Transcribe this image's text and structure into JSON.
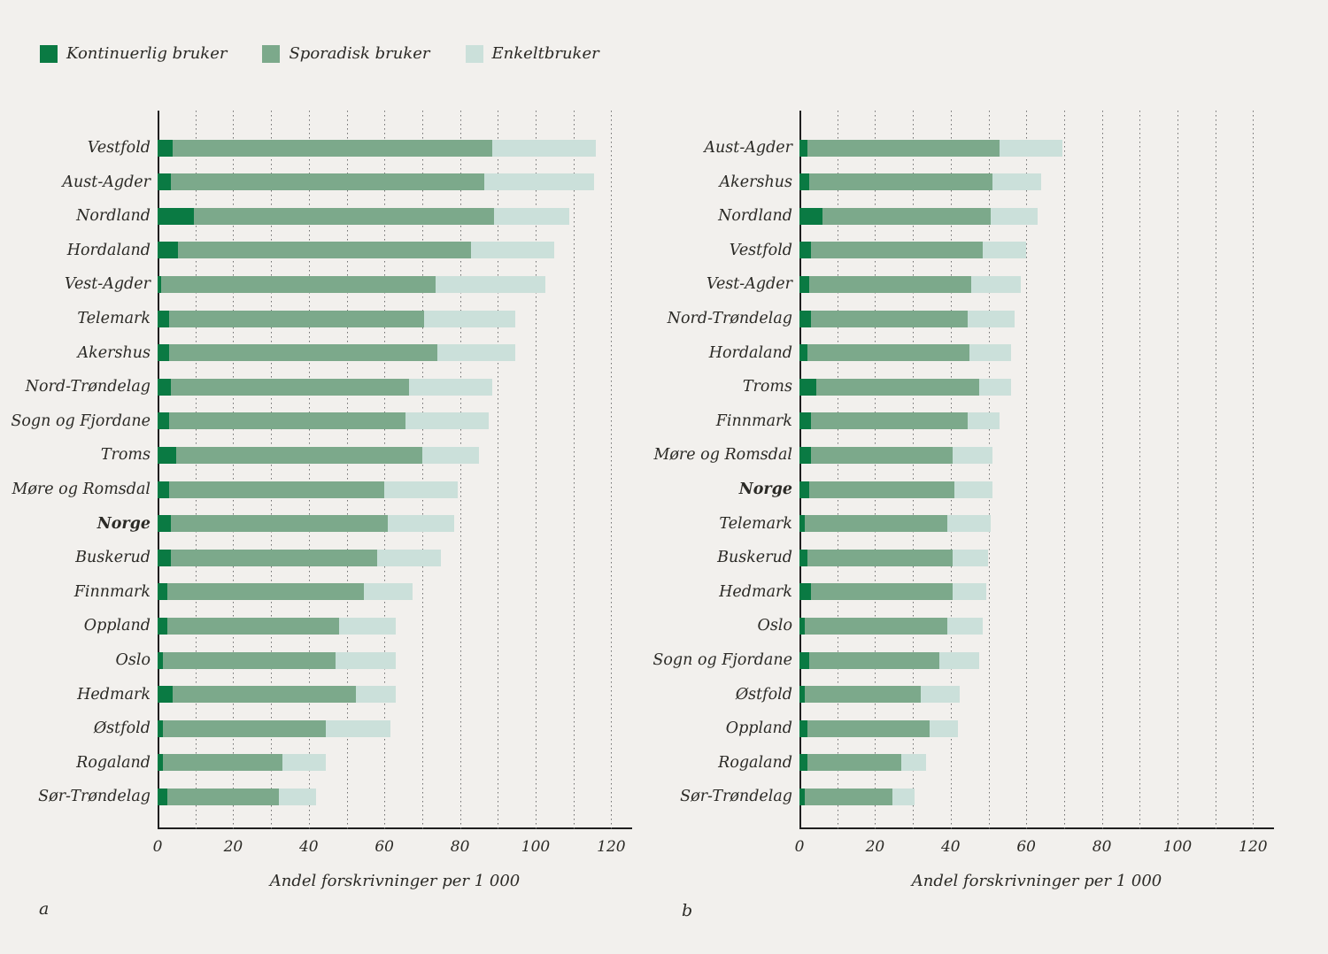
{
  "page": {
    "background": "#f2f0ed"
  },
  "legend": {
    "items": [
      {
        "label": "Kontinuerlig bruker",
        "color": "#0a7a43"
      },
      {
        "label": "Sporadisk bruker",
        "color": "#7ca98b"
      },
      {
        "label": "Enkeltbruker",
        "color": "#cbe0da"
      }
    ]
  },
  "panel_labels": {
    "a": "a",
    "b": "b"
  },
  "chart_data": [
    {
      "id": "a",
      "type": "bar",
      "orientation": "horizontal",
      "stacked": true,
      "xlabel": "Andel forskrivninger per 1 000",
      "xlim": [
        0,
        120
      ],
      "xticks": [
        0,
        20,
        40,
        60,
        80,
        100,
        120
      ],
      "grid_step": 10,
      "grid": "dotted",
      "bold_category": "Norge",
      "series_names": [
        "Kontinuerlig bruker",
        "Sporadisk bruker",
        "Enkeltbruker"
      ],
      "rows": [
        {
          "category": "Vestfold",
          "values": [
            4,
            84.5,
            27.5
          ]
        },
        {
          "category": "Aust-Agder",
          "values": [
            3.5,
            83,
            29
          ]
        },
        {
          "category": "Nordland",
          "values": [
            9.5,
            79.5,
            20
          ]
        },
        {
          "category": "Hordaland",
          "values": [
            5.5,
            77.5,
            22
          ]
        },
        {
          "category": "Vest-Agder",
          "values": [
            1,
            72.5,
            29
          ]
        },
        {
          "category": "Telemark",
          "values": [
            3,
            67.5,
            24
          ]
        },
        {
          "category": "Akershus",
          "values": [
            3,
            71,
            20.5
          ]
        },
        {
          "category": "Nord-Trøndelag",
          "values": [
            3.5,
            63,
            22
          ]
        },
        {
          "category": "Sogn og Fjordane",
          "values": [
            3,
            62.5,
            22
          ]
        },
        {
          "category": "Troms",
          "values": [
            5,
            65,
            15
          ]
        },
        {
          "category": "Møre og Romsdal",
          "values": [
            3,
            57,
            19.5
          ]
        },
        {
          "category": "Norge",
          "values": [
            3.5,
            57.5,
            17.5
          ]
        },
        {
          "category": "Buskerud",
          "values": [
            3.5,
            54.5,
            17
          ]
        },
        {
          "category": "Finnmark",
          "values": [
            2.5,
            52,
            13
          ]
        },
        {
          "category": "Oppland",
          "values": [
            2.5,
            45.5,
            15
          ]
        },
        {
          "category": "Oslo",
          "values": [
            1.5,
            45.5,
            16
          ]
        },
        {
          "category": "Hedmark",
          "values": [
            4,
            48.5,
            10.5
          ]
        },
        {
          "category": "Østfold",
          "values": [
            1.5,
            43,
            17
          ]
        },
        {
          "category": "Rogaland",
          "values": [
            1.5,
            31.5,
            11.5
          ]
        },
        {
          "category": "Sør-Trøndelag",
          "values": [
            2.5,
            29.5,
            10
          ]
        }
      ]
    },
    {
      "id": "b",
      "type": "bar",
      "orientation": "horizontal",
      "stacked": true,
      "xlabel": "Andel forskrivninger per 1 000",
      "xlim": [
        0,
        120
      ],
      "xticks": [
        0,
        20,
        40,
        60,
        80,
        100,
        120
      ],
      "grid_step": 10,
      "grid": "dotted",
      "bold_category": "Norge",
      "series_names": [
        "Kontinuerlig bruker",
        "Sporadisk bruker",
        "Enkeltbruker"
      ],
      "rows": [
        {
          "category": "Aust-Agder",
          "values": [
            2,
            51,
            16.5
          ]
        },
        {
          "category": "Akershus",
          "values": [
            2.5,
            48.5,
            13
          ]
        },
        {
          "category": "Nordland",
          "values": [
            6,
            44.5,
            12.5
          ]
        },
        {
          "category": "Vestfold",
          "values": [
            3,
            45.5,
            11.5
          ]
        },
        {
          "category": "Vest-Agder",
          "values": [
            2.5,
            43,
            13
          ]
        },
        {
          "category": "Nord-Trøndelag",
          "values": [
            3,
            41.5,
            12.5
          ]
        },
        {
          "category": "Hordaland",
          "values": [
            2,
            43,
            11
          ]
        },
        {
          "category": "Troms",
          "values": [
            4.5,
            43,
            8.5
          ]
        },
        {
          "category": "Finnmark",
          "values": [
            3,
            41.5,
            8.5
          ]
        },
        {
          "category": "Møre og Romsdal",
          "values": [
            3,
            37.5,
            10.5
          ]
        },
        {
          "category": "Norge",
          "values": [
            2.5,
            38.5,
            10
          ]
        },
        {
          "category": "Telemark",
          "values": [
            1.5,
            37.5,
            11.5
          ]
        },
        {
          "category": "Buskerud",
          "values": [
            2,
            38.5,
            9.5
          ]
        },
        {
          "category": "Hedmark",
          "values": [
            3,
            37.5,
            9
          ]
        },
        {
          "category": "Oslo",
          "values": [
            1.5,
            37.5,
            9.5
          ]
        },
        {
          "category": "Sogn og Fjordane",
          "values": [
            2.5,
            34.5,
            10.5
          ]
        },
        {
          "category": "Østfold",
          "values": [
            1.5,
            30.5,
            10.5
          ]
        },
        {
          "category": "Oppland",
          "values": [
            2,
            32.5,
            7.5
          ]
        },
        {
          "category": "Rogaland",
          "values": [
            2,
            25,
            6.5
          ]
        },
        {
          "category": "Sør-Trøndelag",
          "values": [
            1.5,
            23,
            6
          ]
        }
      ]
    }
  ]
}
